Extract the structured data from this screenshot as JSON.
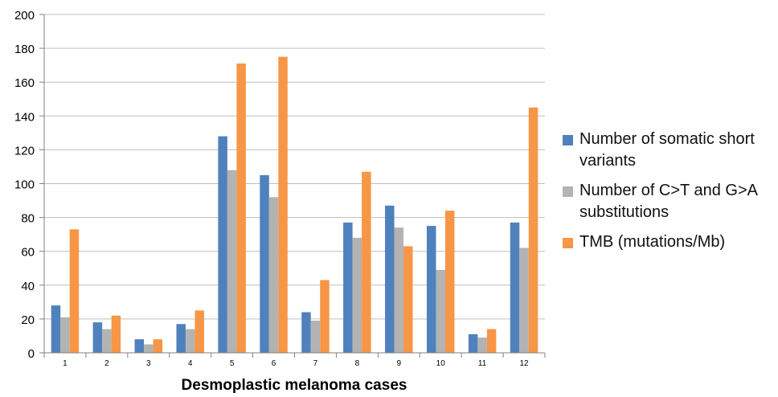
{
  "chart_data": {
    "type": "bar",
    "categories": [
      "1",
      "2",
      "3",
      "4",
      "5",
      "6",
      "7",
      "8",
      "9",
      "10",
      "11",
      "12"
    ],
    "series": [
      {
        "name": "Number of somatic short variants",
        "color": "#4f81bd",
        "values": [
          28,
          18,
          8,
          17,
          128,
          105,
          24,
          77,
          87,
          75,
          11,
          77
        ]
      },
      {
        "name": "Number of C>T and G>A substitutions",
        "color": "#b3b3b3",
        "values": [
          21,
          14,
          5,
          14,
          108,
          92,
          19,
          68,
          74,
          49,
          9,
          62
        ]
      },
      {
        "name": "TMB (mutations/Mb)",
        "color": "#f79646",
        "values": [
          73,
          22,
          8,
          25,
          171,
          175,
          43,
          107,
          63,
          84,
          14,
          145
        ]
      }
    ],
    "yticks": [
      "0",
      "20",
      "40",
      "60",
      "80",
      "100",
      "120",
      "140",
      "160",
      "180",
      "200"
    ],
    "xlabel": "Desmoplastic melanoma cases",
    "ylabel": "",
    "title": "",
    "ylim": [
      0,
      200
    ],
    "grid": true,
    "legend_position": "right"
  }
}
